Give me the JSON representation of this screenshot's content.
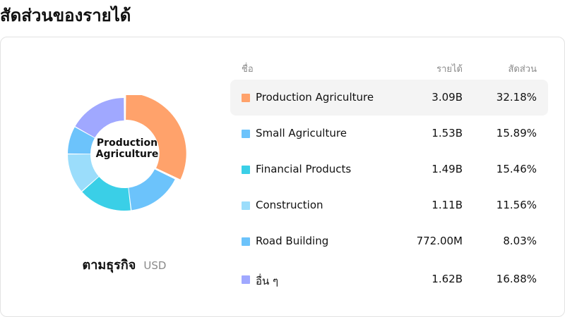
{
  "page_title": "สัดส่วนของรายได้",
  "chart": {
    "center_label": "Production Agriculture",
    "caption": "ตามธุรกิจ",
    "unit": "USD"
  },
  "table": {
    "headers": {
      "name": "ชื่อ",
      "revenue": "รายได้",
      "share": "สัดส่วน"
    },
    "rows": [
      {
        "name": "Production Agriculture",
        "revenue": "3.09B",
        "share": "32.18%",
        "color": "#FFA26B",
        "active": true
      },
      {
        "name": "Small Agriculture",
        "revenue": "1.53B",
        "share": "15.89%",
        "color": "#6CC3FB",
        "active": false
      },
      {
        "name": "Financial Products",
        "revenue": "1.49B",
        "share": "15.46%",
        "color": "#3ACFE7",
        "active": false
      },
      {
        "name": "Construction",
        "revenue": "1.11B",
        "share": "11.56%",
        "color": "#9BDDFB",
        "active": false
      },
      {
        "name": "Road Building",
        "revenue": "772.00M",
        "share": "8.03%",
        "color": "#6CC3FB",
        "active": false
      },
      {
        "name": "อื่น ๆ",
        "revenue": "1.62B",
        "share": "16.88%",
        "color": "#A0A8FF",
        "active": false
      }
    ]
  },
  "chart_data": {
    "type": "pie",
    "categories": [
      "Production Agriculture",
      "Small Agriculture",
      "Financial Products",
      "Construction",
      "Road Building",
      "อื่น ๆ"
    ],
    "values": [
      32.18,
      15.89,
      15.46,
      11.56,
      8.03,
      16.88
    ],
    "colors": [
      "#FFA26B",
      "#6CC3FB",
      "#3ACFE7",
      "#9BDDFB",
      "#6CC3FB",
      "#A0A8FF"
    ],
    "highlighted": "Production Agriculture"
  }
}
